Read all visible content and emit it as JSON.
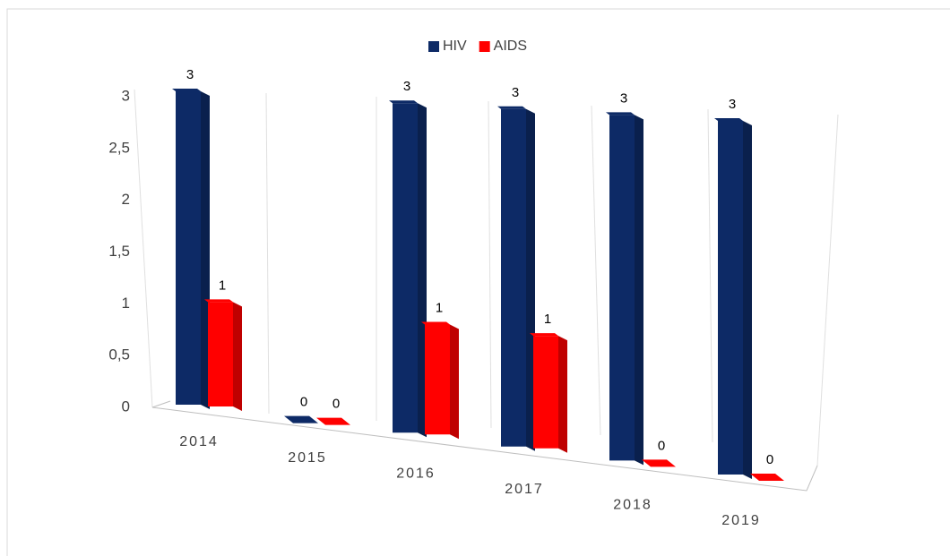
{
  "chart_data": {
    "type": "bar3d",
    "categories": [
      "2014",
      "2015",
      "2016",
      "2017",
      "2018",
      "2019"
    ],
    "series": [
      {
        "name": "HIV",
        "color": "#0d2a66",
        "values": [
          3,
          0,
          3,
          3,
          3,
          3
        ]
      },
      {
        "name": "AIDS",
        "color": "#ff0000",
        "values": [
          1,
          0,
          1,
          1,
          0,
          0
        ]
      }
    ],
    "ylim": [
      0,
      3
    ],
    "yticks": [
      0,
      {
        "value": 0.5,
        "label": "0,5"
      },
      1,
      {
        "value": 1.5,
        "label": "1,5"
      },
      2,
      {
        "value": 2.5,
        "label": "2,5"
      },
      3
    ],
    "legend": "top"
  }
}
